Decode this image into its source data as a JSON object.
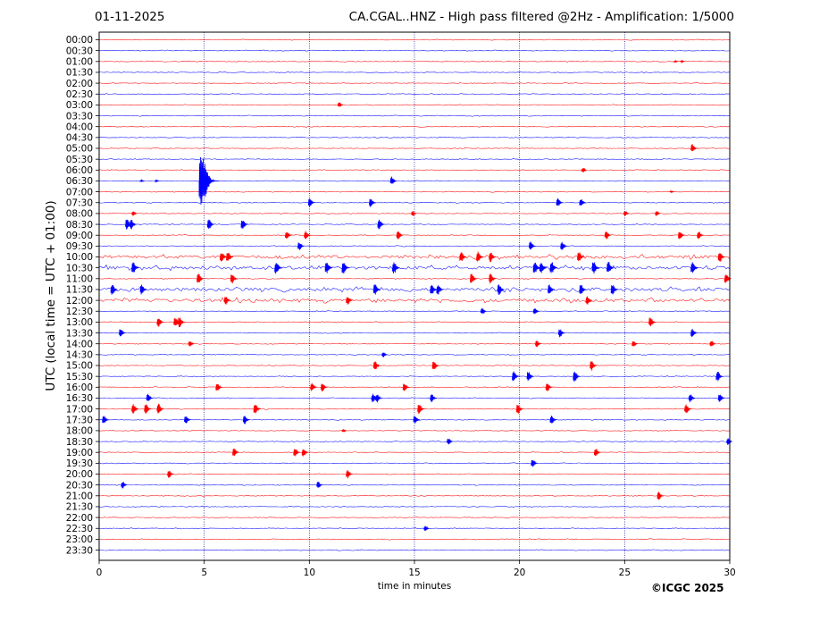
{
  "header": {
    "date": "01-11-2025",
    "title": "CA.CGAL..HNZ - High pass filtered @2Hz - Amplification: 1/5000"
  },
  "footer": {
    "copyright": "©ICGC 2025"
  },
  "chart_data": {
    "type": "line",
    "title": "CA.CGAL..HNZ - High pass filtered @2Hz - Amplification: 1/5000",
    "xlabel": "time in minutes",
    "ylabel": "UTC (local time = UTC + 01:00)",
    "xlim": [
      0,
      30
    ],
    "xticks": [
      0,
      5,
      10,
      15,
      20,
      25,
      30
    ],
    "grid": "vertical dotted at x ticks",
    "trace_colors": [
      "#ff0000",
      "#0000ff"
    ],
    "rows": [
      "00:00",
      "00:30",
      "01:00",
      "01:30",
      "02:00",
      "02:30",
      "03:00",
      "03:30",
      "04:00",
      "04:30",
      "05:00",
      "05:30",
      "06:00",
      "06:30",
      "07:00",
      "07:30",
      "08:00",
      "08:30",
      "09:00",
      "09:30",
      "10:00",
      "10:30",
      "11:00",
      "11:30",
      "12:00",
      "12:30",
      "13:00",
      "13:30",
      "14:00",
      "14:30",
      "15:00",
      "15:30",
      "16:00",
      "16:30",
      "17:00",
      "17:30",
      "18:00",
      "18:30",
      "19:00",
      "19:30",
      "20:00",
      "20:30",
      "21:00",
      "21:30",
      "22:00",
      "22:30",
      "23:00",
      "23:30"
    ],
    "events": [
      {
        "row": "01:00",
        "t": [
          27.4,
          27.7
        ],
        "amp": 1
      },
      {
        "row": "03:00",
        "t": [
          11.4
        ],
        "amp": 3
      },
      {
        "row": "05:00",
        "t": [
          28.2
        ],
        "amp": 5
      },
      {
        "row": "06:00",
        "t": [
          23.0
        ],
        "amp": 3
      },
      {
        "row": "06:30",
        "t": [
          4.8
        ],
        "amp": 30
      },
      {
        "row": "06:30",
        "t": [
          13.9
        ],
        "amp": 5
      },
      {
        "row": "06:30",
        "t": [
          2.0,
          2.7
        ],
        "amp": 1
      },
      {
        "row": "07:00",
        "t": [
          27.2
        ],
        "amp": 1
      },
      {
        "row": "07:30",
        "t": [
          10.0,
          12.9,
          21.8,
          22.9
        ],
        "amp": 5
      },
      {
        "row": "08:00",
        "t": [
          1.6,
          14.9,
          25.0,
          26.5
        ],
        "amp": 3
      },
      {
        "row": "08:30",
        "t": [
          1.3,
          1.5,
          5.2,
          6.8,
          13.3
        ],
        "amp": 6
      },
      {
        "row": "09:00",
        "t": [
          8.9,
          9.8,
          14.2,
          24.1,
          27.6,
          28.5
        ],
        "amp": 5
      },
      {
        "row": "09:30",
        "t": [
          9.5,
          20.5,
          22.0
        ],
        "amp": 5
      },
      {
        "row": "10:00",
        "t": [
          5.8,
          6.1,
          17.2,
          18.0,
          18.6,
          22.8,
          29.5
        ],
        "amp": 6
      },
      {
        "row": "10:30",
        "t": [
          1.6,
          8.4,
          10.8,
          11.6,
          14.0,
          20.7,
          21.0,
          21.5,
          23.5,
          24.2,
          28.2
        ],
        "amp": 7
      },
      {
        "row": "11:00",
        "t": [
          4.7,
          6.3,
          17.7,
          18.6,
          29.8
        ],
        "amp": 6
      },
      {
        "row": "11:30",
        "t": [
          0.6,
          2.0,
          13.1,
          15.8,
          16.1,
          19.0,
          21.4,
          22.9,
          24.4
        ],
        "amp": 6
      },
      {
        "row": "12:00",
        "t": [
          6.0,
          11.8,
          23.2
        ],
        "amp": 5
      },
      {
        "row": "12:30",
        "t": [
          18.2,
          20.7
        ],
        "amp": 4
      },
      {
        "row": "13:00",
        "t": [
          2.8,
          3.6,
          3.8,
          26.2
        ],
        "amp": 6
      },
      {
        "row": "13:30",
        "t": [
          1.0,
          21.9,
          28.2
        ],
        "amp": 5
      },
      {
        "row": "14:00",
        "t": [
          4.3,
          20.8,
          25.4,
          29.1
        ],
        "amp": 4
      },
      {
        "row": "14:30",
        "t": [
          13.5
        ],
        "amp": 3
      },
      {
        "row": "15:00",
        "t": [
          13.1,
          15.9,
          23.4
        ],
        "amp": 6
      },
      {
        "row": "15:30",
        "t": [
          19.7,
          20.4,
          22.6,
          29.4
        ],
        "amp": 6
      },
      {
        "row": "16:00",
        "t": [
          5.6,
          10.1,
          10.6,
          14.5,
          21.3
        ],
        "amp": 5
      },
      {
        "row": "16:30",
        "t": [
          2.3,
          13.0,
          13.2,
          15.8,
          28.1,
          29.5
        ],
        "amp": 5
      },
      {
        "row": "17:00",
        "t": [
          1.6,
          2.2,
          2.8,
          7.4,
          15.2,
          19.9,
          27.9
        ],
        "amp": 6
      },
      {
        "row": "17:30",
        "t": [
          0.2,
          4.1,
          6.9,
          15.0,
          21.5
        ],
        "amp": 5
      },
      {
        "row": "18:00",
        "t": [
          11.6
        ],
        "amp": 2
      },
      {
        "row": "18:30",
        "t": [
          16.6,
          29.9
        ],
        "amp": 4
      },
      {
        "row": "19:00",
        "t": [
          6.4,
          9.3,
          9.7,
          23.6
        ],
        "amp": 5
      },
      {
        "row": "19:30",
        "t": [
          20.6
        ],
        "amp": 5
      },
      {
        "row": "20:00",
        "t": [
          3.3,
          11.8
        ],
        "amp": 5
      },
      {
        "row": "20:30",
        "t": [
          1.1,
          10.4
        ],
        "amp": 4
      },
      {
        "row": "21:00",
        "t": [
          26.6
        ],
        "amp": 5
      },
      {
        "row": "22:30",
        "t": [
          15.5
        ],
        "amp": 3
      }
    ]
  }
}
